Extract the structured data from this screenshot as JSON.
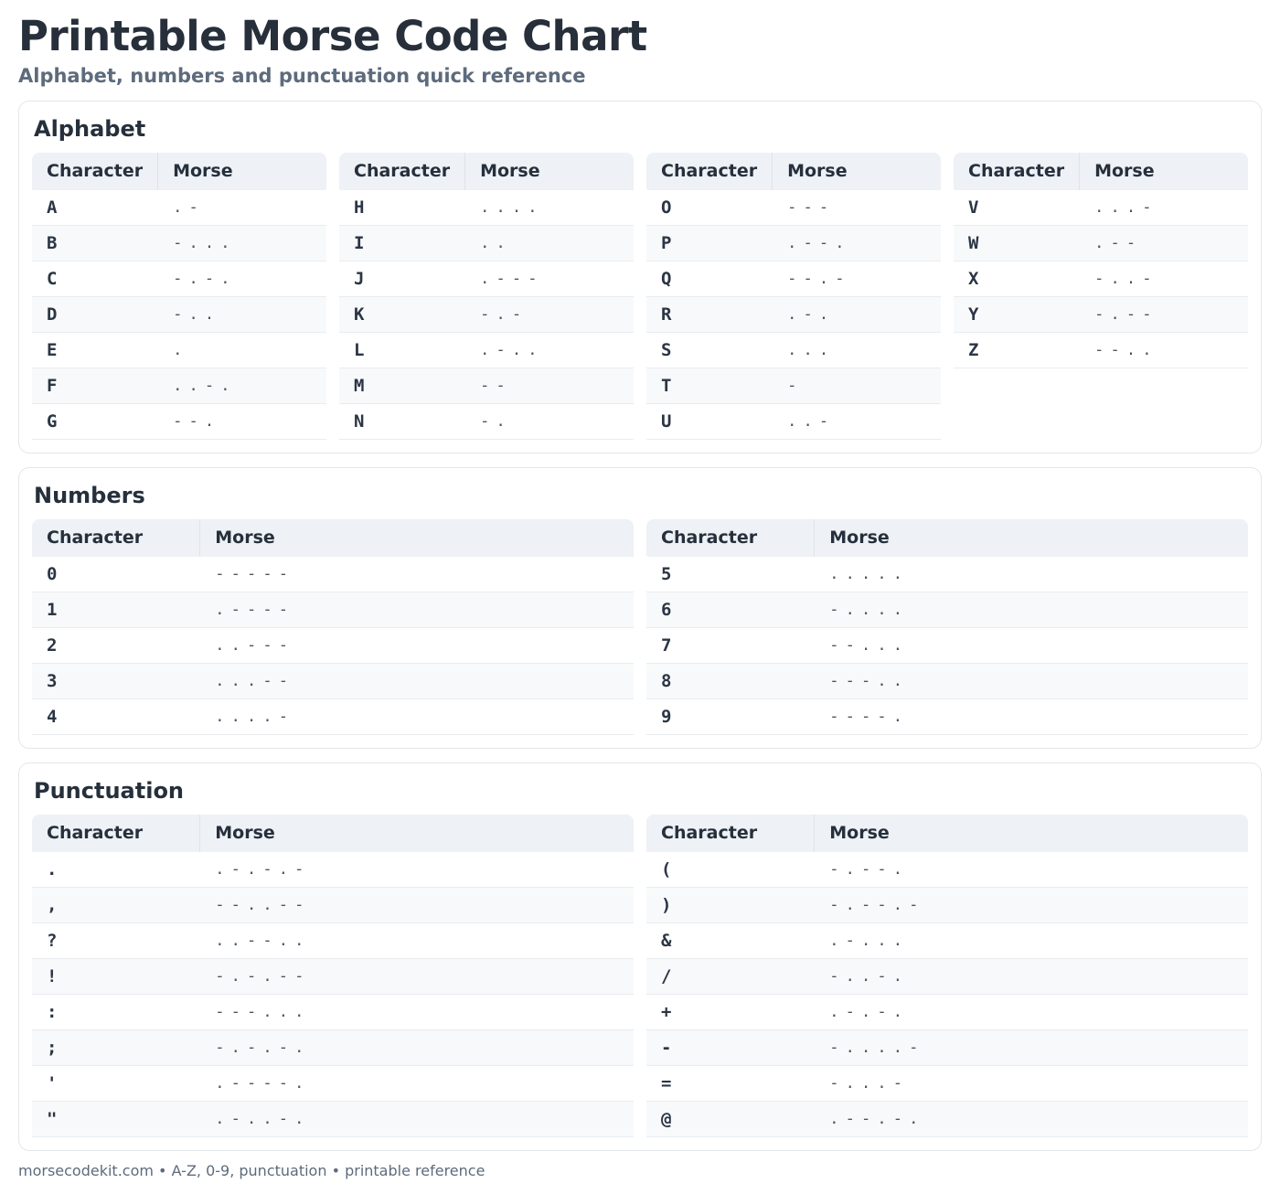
{
  "header": {
    "title": "Printable Morse Code Chart",
    "subtitle": "Alphabet, numbers and punctuation quick reference"
  },
  "table_headers": {
    "character": "Character",
    "morse": "Morse"
  },
  "sections": [
    {
      "title": "Alphabet",
      "columns": [
        [
          {
            "char": "A",
            "morse": ".-"
          },
          {
            "char": "B",
            "morse": "-..."
          },
          {
            "char": "C",
            "morse": "-.-."
          },
          {
            "char": "D",
            "morse": "-.."
          },
          {
            "char": "E",
            "morse": "."
          },
          {
            "char": "F",
            "morse": "..-."
          },
          {
            "char": "G",
            "morse": "--."
          }
        ],
        [
          {
            "char": "H",
            "morse": "...."
          },
          {
            "char": "I",
            "morse": ".."
          },
          {
            "char": "J",
            "morse": ".---"
          },
          {
            "char": "K",
            "morse": "-.-"
          },
          {
            "char": "L",
            "morse": ".-.."
          },
          {
            "char": "M",
            "morse": "--"
          },
          {
            "char": "N",
            "morse": "-."
          }
        ],
        [
          {
            "char": "O",
            "morse": "---"
          },
          {
            "char": "P",
            "morse": ".--."
          },
          {
            "char": "Q",
            "morse": "--.-"
          },
          {
            "char": "R",
            "morse": ".-."
          },
          {
            "char": "S",
            "morse": "..."
          },
          {
            "char": "T",
            "morse": "-"
          },
          {
            "char": "U",
            "morse": "..-"
          }
        ],
        [
          {
            "char": "V",
            "morse": "...-"
          },
          {
            "char": "W",
            "morse": ".--"
          },
          {
            "char": "X",
            "morse": "-..-"
          },
          {
            "char": "Y",
            "morse": "-.--"
          },
          {
            "char": "Z",
            "morse": "--.."
          }
        ]
      ]
    },
    {
      "title": "Numbers",
      "columns": [
        [
          {
            "char": "0",
            "morse": "-----"
          },
          {
            "char": "1",
            "morse": ".----"
          },
          {
            "char": "2",
            "morse": "..---"
          },
          {
            "char": "3",
            "morse": "...--"
          },
          {
            "char": "4",
            "morse": "....-"
          }
        ],
        [
          {
            "char": "5",
            "morse": "....."
          },
          {
            "char": "6",
            "morse": "-...."
          },
          {
            "char": "7",
            "morse": "--..."
          },
          {
            "char": "8",
            "morse": "---.."
          },
          {
            "char": "9",
            "morse": "----."
          }
        ]
      ]
    },
    {
      "title": "Punctuation",
      "columns": [
        [
          {
            "char": ".",
            "morse": ".-.-.-"
          },
          {
            "char": ",",
            "morse": "--..--"
          },
          {
            "char": "?",
            "morse": "..--.."
          },
          {
            "char": "!",
            "morse": "-.-.--"
          },
          {
            "char": ":",
            "morse": "---..."
          },
          {
            "char": ";",
            "morse": "-.-.-."
          },
          {
            "char": "'",
            "morse": ".----."
          },
          {
            "char": "\"",
            "morse": ".-..-."
          }
        ],
        [
          {
            "char": "(",
            "morse": "-.--."
          },
          {
            "char": ")",
            "morse": "-.--.-"
          },
          {
            "char": "&",
            "morse": ".-..."
          },
          {
            "char": "/",
            "morse": "-..-."
          },
          {
            "char": "+",
            "morse": ".-.-."
          },
          {
            "char": "-",
            "morse": "-....-"
          },
          {
            "char": "=",
            "morse": "-...-"
          },
          {
            "char": "@",
            "morse": ".--.-."
          }
        ]
      ]
    }
  ],
  "footer": {
    "text": "morsecodekit.com • A-Z, 0-9, punctuation • printable reference"
  },
  "colors": {
    "title_text": "#262f3a",
    "muted_text": "#5d6b7c",
    "table_header_bg": "#eef1f5",
    "row_stripe_bg": "#f7f9fa",
    "card_border": "#e3e7eb"
  }
}
